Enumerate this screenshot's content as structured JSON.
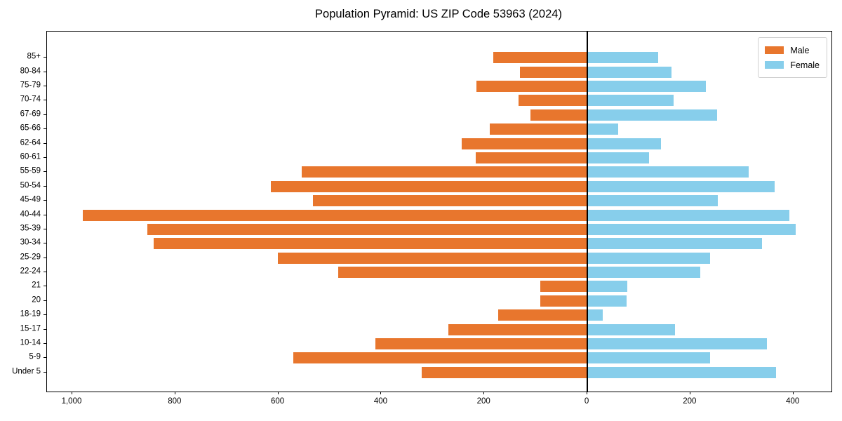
{
  "title": "Population Pyramid: US ZIP Code 53963 (2024)",
  "legend": {
    "male_label": "Male",
    "female_label": "Female"
  },
  "colors": {
    "male": "#E8762D",
    "female": "#87CEEB",
    "axis": "#000000",
    "legend_border": "#cfcfcf",
    "background": "#ffffff"
  },
  "chart_data": {
    "type": "bar",
    "orientation": "horizontal",
    "title": "Population Pyramid: US ZIP Code 53963 (2024)",
    "categories": [
      "85+",
      "80-84",
      "75-79",
      "70-74",
      "67-69",
      "65-66",
      "62-64",
      "60-61",
      "55-59",
      "50-54",
      "45-49",
      "40-44",
      "35-39",
      "30-34",
      "25-29",
      "22-24",
      "21",
      "20",
      "18-19",
      "15-17",
      "10-14",
      "5-9",
      "Under 5"
    ],
    "series": [
      {
        "name": "Male",
        "side": "left",
        "color": "#E8762D",
        "values": [
          182,
          131,
          215,
          133,
          110,
          190,
          244,
          216,
          554,
          615,
          533,
          980,
          854,
          842,
          601,
          484,
          92,
          91,
          173,
          270,
          411,
          571,
          321
        ]
      },
      {
        "name": "Female",
        "side": "right",
        "color": "#87CEEB",
        "values": [
          137,
          163,
          230,
          167,
          252,
          60,
          143,
          120,
          313,
          363,
          253,
          392,
          405,
          339,
          239,
          219,
          78,
          76,
          30,
          170,
          348,
          238,
          366
        ]
      }
    ],
    "xlim": [
      -1049,
      474
    ],
    "x_ticks": [
      {
        "value": -1000,
        "label": "1,000"
      },
      {
        "value": -800,
        "label": "800"
      },
      {
        "value": -600,
        "label": "600"
      },
      {
        "value": -400,
        "label": "400"
      },
      {
        "value": -200,
        "label": "200"
      },
      {
        "value": 0,
        "label": "0"
      },
      {
        "value": 200,
        "label": "200"
      },
      {
        "value": 400,
        "label": "400"
      }
    ],
    "grid": false,
    "legend_position": "upper right",
    "legend_entries": [
      "Male",
      "Female"
    ]
  }
}
